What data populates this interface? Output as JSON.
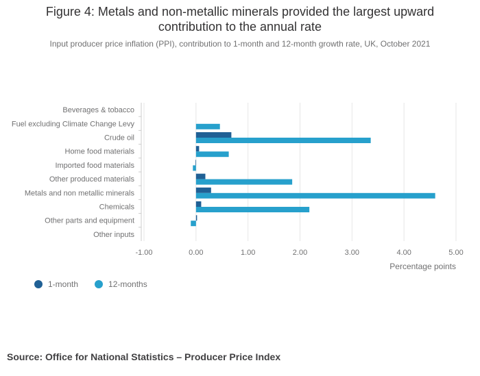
{
  "header": {
    "title": "Figure 4: Metals and non-metallic minerals provided the largest upward contribution to the annual rate",
    "subtitle": "Input producer price inflation (PPI), contribution to 1-month and 12-month growth rate, UK, October 2021"
  },
  "chart_data": {
    "type": "bar",
    "orientation": "horizontal",
    "categories": [
      "Beverages & tobacco",
      "Fuel excluding Climate Change Levy",
      "Crude oil",
      "Home food materials",
      "Imported food materials",
      "Other produced materials",
      "Metals and non metallic minerals",
      "Chemicals",
      "Other parts and equipment",
      "Other inputs"
    ],
    "series": [
      {
        "name": "1-month",
        "color": "#206095",
        "values": [
          0.0,
          0.0,
          0.68,
          0.06,
          -0.01,
          0.18,
          0.29,
          0.1,
          0.02,
          0.0
        ]
      },
      {
        "name": "12-months",
        "color": "#27a0cc",
        "values": [
          0.0,
          0.46,
          3.36,
          0.63,
          -0.06,
          1.85,
          4.6,
          2.18,
          -0.1,
          0.0
        ]
      }
    ],
    "xlabel": "Percentage points",
    "ylabel": "",
    "xlim": [
      -1.0,
      5.0
    ],
    "xticks": [
      "-1.00",
      "0.00",
      "1.00",
      "2.00",
      "3.00",
      "4.00",
      "5.00"
    ],
    "grid": true,
    "legend_position": "bottom-left"
  },
  "footer": {
    "source": "Source: Office for National Statistics – Producer Price Index"
  }
}
